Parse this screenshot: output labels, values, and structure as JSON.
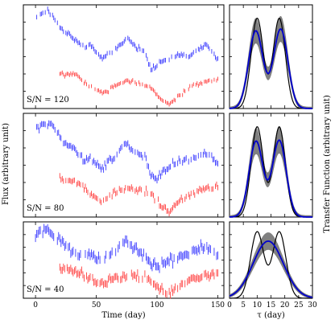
{
  "figure": {
    "left_ylabel": "Flux (arbitrary unit)",
    "right_ylabel": "Transfer Function (arbitrary unit)"
  },
  "colors": {
    "blue_series": "#3a3aff",
    "red_series": "#ff4040",
    "band": "#808080",
    "model_line": "#0000cc",
    "true_line": "#000000"
  },
  "chart_data": [
    {
      "type": "scatter",
      "panel": "light-curve-1",
      "annotation": "S/N = 120",
      "xlim": [
        -10,
        155
      ],
      "ylim": [
        -2.8,
        2.6
      ],
      "xticks": [
        0,
        50,
        100,
        150
      ],
      "xtick_labels": [
        "",
        "",
        "",
        ""
      ],
      "xlabel": "",
      "series": [
        {
          "color": "blue",
          "x_range": [
            0,
            150
          ],
          "step": 1,
          "keyframes": [
            [
              0,
              1.9
            ],
            [
              5,
              2.1
            ],
            [
              10,
              2.3
            ],
            [
              15,
              1.9
            ],
            [
              20,
              1.5
            ],
            [
              25,
              1.2
            ],
            [
              30,
              0.9
            ],
            [
              35,
              0.7
            ],
            [
              40,
              0.4
            ],
            [
              45,
              0.5
            ],
            [
              50,
              0.1
            ],
            [
              55,
              -0.2
            ],
            [
              60,
              0.1
            ],
            [
              65,
              0.2
            ],
            [
              70,
              0.5
            ],
            [
              75,
              0.9
            ],
            [
              80,
              0.6
            ],
            [
              85,
              0.3
            ],
            [
              90,
              0.2
            ],
            [
              95,
              -0.8
            ],
            [
              100,
              -0.6
            ],
            [
              105,
              -0.3
            ],
            [
              110,
              -0.2
            ],
            [
              115,
              -0.1
            ],
            [
              120,
              0.0
            ],
            [
              125,
              -0.1
            ],
            [
              130,
              0.1
            ],
            [
              135,
              0.3
            ],
            [
              140,
              0.5
            ],
            [
              145,
              0.2
            ],
            [
              150,
              -0.2
            ]
          ],
          "yerr": 0.12
        },
        {
          "color": "red",
          "x_range": [
            20,
            150
          ],
          "step": 1,
          "keyframes": [
            [
              20,
              -1.0
            ],
            [
              25,
              -1.0
            ],
            [
              30,
              -1.0
            ],
            [
              35,
              -1.1
            ],
            [
              40,
              -1.4
            ],
            [
              45,
              -1.6
            ],
            [
              50,
              -1.9
            ],
            [
              55,
              -2.0
            ],
            [
              60,
              -1.9
            ],
            [
              65,
              -1.6
            ],
            [
              70,
              -1.5
            ],
            [
              75,
              -1.4
            ],
            [
              80,
              -1.4
            ],
            [
              85,
              -1.5
            ],
            [
              90,
              -1.6
            ],
            [
              95,
              -1.7
            ],
            [
              100,
              -2.1
            ],
            [
              105,
              -2.4
            ],
            [
              110,
              -2.6
            ],
            [
              115,
              -2.3
            ],
            [
              120,
              -2.0
            ],
            [
              125,
              -1.8
            ],
            [
              130,
              -1.6
            ],
            [
              135,
              -1.5
            ],
            [
              140,
              -1.4
            ],
            [
              145,
              -1.4
            ],
            [
              150,
              -1.3
            ]
          ],
          "yerr": 0.1
        }
      ]
    },
    {
      "type": "scatter",
      "panel": "light-curve-2",
      "annotation": "S/N = 80",
      "xlim": [
        -10,
        155
      ],
      "ylim": [
        -2.8,
        2.6
      ],
      "xticks": [
        0,
        50,
        100,
        150
      ],
      "xtick_labels": [
        "",
        "",
        "",
        ""
      ],
      "xlabel": "",
      "series": [
        {
          "color": "blue",
          "x_range": [
            0,
            150
          ],
          "step": 1,
          "keyframes": [
            [
              0,
              1.8
            ],
            [
              5,
              2.0
            ],
            [
              10,
              2.1
            ],
            [
              15,
              1.9
            ],
            [
              20,
              1.4
            ],
            [
              25,
              1.0
            ],
            [
              30,
              0.8
            ],
            [
              35,
              0.5
            ],
            [
              40,
              0.2
            ],
            [
              45,
              0.3
            ],
            [
              50,
              0.0
            ],
            [
              55,
              -0.3
            ],
            [
              60,
              0.1
            ],
            [
              65,
              0.3
            ],
            [
              70,
              0.7
            ],
            [
              75,
              1.1
            ],
            [
              80,
              0.6
            ],
            [
              85,
              0.5
            ],
            [
              90,
              0.3
            ],
            [
              95,
              -0.6
            ],
            [
              100,
              -0.9
            ],
            [
              105,
              -0.4
            ],
            [
              110,
              -0.2
            ],
            [
              115,
              0.0
            ],
            [
              120,
              0.1
            ],
            [
              125,
              0.2
            ],
            [
              130,
              0.2
            ],
            [
              135,
              0.4
            ],
            [
              140,
              0.6
            ],
            [
              145,
              0.3
            ],
            [
              150,
              0.0
            ]
          ],
          "yerr": 0.15
        },
        {
          "color": "red",
          "x_range": [
            20,
            150
          ],
          "step": 1,
          "keyframes": [
            [
              20,
              -0.8
            ],
            [
              25,
              -0.9
            ],
            [
              30,
              -0.9
            ],
            [
              35,
              -1.0
            ],
            [
              40,
              -1.3
            ],
            [
              45,
              -1.6
            ],
            [
              50,
              -1.8
            ],
            [
              55,
              -2.0
            ],
            [
              60,
              -1.8
            ],
            [
              65,
              -1.5
            ],
            [
              70,
              -1.4
            ],
            [
              75,
              -1.3
            ],
            [
              80,
              -1.3
            ],
            [
              85,
              -1.4
            ],
            [
              90,
              -1.5
            ],
            [
              95,
              -1.6
            ],
            [
              100,
              -2.0
            ],
            [
              105,
              -2.3
            ],
            [
              110,
              -2.5
            ],
            [
              115,
              -2.2
            ],
            [
              120,
              -1.9
            ],
            [
              125,
              -1.7
            ],
            [
              130,
              -1.5
            ],
            [
              135,
              -1.4
            ],
            [
              140,
              -1.3
            ],
            [
              145,
              -1.3
            ],
            [
              150,
              -1.2
            ]
          ],
          "yerr": 0.14
        }
      ]
    },
    {
      "type": "scatter",
      "panel": "light-curve-3",
      "annotation": "S/N = 40",
      "xlim": [
        -10,
        155
      ],
      "ylim": [
        -2.8,
        2.6
      ],
      "xticks": [
        0,
        50,
        100,
        150
      ],
      "xtick_labels": [
        "0",
        "50",
        "100",
        "150"
      ],
      "xlabel": "Time (day)",
      "series": [
        {
          "color": "blue",
          "x_range": [
            0,
            150
          ],
          "step": 1,
          "keyframes": [
            [
              0,
              1.6
            ],
            [
              5,
              2.0
            ],
            [
              10,
              2.0
            ],
            [
              15,
              1.6
            ],
            [
              20,
              1.2
            ],
            [
              25,
              0.8
            ],
            [
              30,
              0.5
            ],
            [
              35,
              0.3
            ],
            [
              40,
              0.1
            ],
            [
              45,
              0.4
            ],
            [
              50,
              0.0
            ],
            [
              55,
              -0.2
            ],
            [
              60,
              0.2
            ],
            [
              65,
              0.5
            ],
            [
              70,
              0.8
            ],
            [
              75,
              1.3
            ],
            [
              80,
              0.8
            ],
            [
              85,
              0.6
            ],
            [
              90,
              0.3
            ],
            [
              95,
              -0.4
            ],
            [
              100,
              -0.6
            ],
            [
              105,
              -0.3
            ],
            [
              110,
              0.0
            ],
            [
              115,
              0.1
            ],
            [
              120,
              0.2
            ],
            [
              125,
              0.3
            ],
            [
              130,
              0.5
            ],
            [
              135,
              0.7
            ],
            [
              140,
              0.9
            ],
            [
              145,
              0.4
            ],
            [
              150,
              0.1
            ]
          ],
          "yerr": 0.28
        },
        {
          "color": "red",
          "x_range": [
            20,
            150
          ],
          "step": 1,
          "keyframes": [
            [
              20,
              -0.7
            ],
            [
              25,
              -0.8
            ],
            [
              30,
              -0.9
            ],
            [
              35,
              -1.0
            ],
            [
              40,
              -1.2
            ],
            [
              45,
              -1.5
            ],
            [
              50,
              -1.7
            ],
            [
              55,
              -1.8
            ],
            [
              60,
              -1.7
            ],
            [
              65,
              -1.4
            ],
            [
              70,
              -1.3
            ],
            [
              75,
              -1.2
            ],
            [
              80,
              -1.2
            ],
            [
              85,
              -1.3
            ],
            [
              90,
              -1.4
            ],
            [
              95,
              -1.5
            ],
            [
              100,
              -1.9
            ],
            [
              105,
              -2.2
            ],
            [
              110,
              -2.4
            ],
            [
              115,
              -2.1
            ],
            [
              120,
              -1.8
            ],
            [
              125,
              -1.6
            ],
            [
              130,
              -1.4
            ],
            [
              135,
              -1.3
            ],
            [
              140,
              -1.2
            ],
            [
              145,
              -1.2
            ],
            [
              150,
              -1.1
            ]
          ],
          "yerr": 0.25
        }
      ]
    },
    {
      "type": "line",
      "panel": "transfer-1",
      "xlim": [
        0,
        30
      ],
      "ylim": [
        0,
        1.15
      ],
      "xticks": [
        0,
        5,
        10,
        15,
        20,
        25,
        30
      ],
      "xtick_labels": [
        "",
        "",
        "",
        "",
        "",
        "",
        ""
      ],
      "xlabel": "",
      "true_peaks": [
        [
          10,
          2.2,
          1.0
        ],
        [
          18,
          2.2,
          1.0
        ]
      ],
      "model_peaks": [
        [
          9.5,
          2.6,
          0.86
        ],
        [
          18.5,
          2.6,
          0.88
        ]
      ],
      "band_halfwidth": 0.14
    },
    {
      "type": "line",
      "panel": "transfer-2",
      "xlim": [
        0,
        30
      ],
      "ylim": [
        0,
        1.15
      ],
      "xticks": [
        0,
        5,
        10,
        15,
        20,
        25,
        30
      ],
      "xtick_labels": [
        "",
        "",
        "",
        "",
        "",
        "",
        ""
      ],
      "xlabel": "",
      "true_peaks": [
        [
          10,
          2.2,
          1.0
        ],
        [
          18,
          2.2,
          1.0
        ]
      ],
      "model_peaks": [
        [
          9.6,
          2.5,
          0.84
        ],
        [
          18.0,
          2.5,
          0.85
        ]
      ],
      "band_halfwidth": 0.15
    },
    {
      "type": "line",
      "panel": "transfer-3",
      "xlim": [
        0,
        30
      ],
      "ylim": [
        0,
        1.15
      ],
      "xticks": [
        0,
        5,
        10,
        15,
        20,
        25,
        30
      ],
      "xtick_labels": [
        "0",
        "5",
        "10",
        "15",
        "20",
        "25",
        "30"
      ],
      "xlabel": "τ (day)",
      "true_peaks": [
        [
          10,
          2.4,
          1.0
        ],
        [
          18,
          2.4,
          1.0
        ]
      ],
      "model_peaks": [
        [
          14,
          5.5,
          0.86
        ]
      ],
      "band_halfwidth": 0.13
    }
  ]
}
